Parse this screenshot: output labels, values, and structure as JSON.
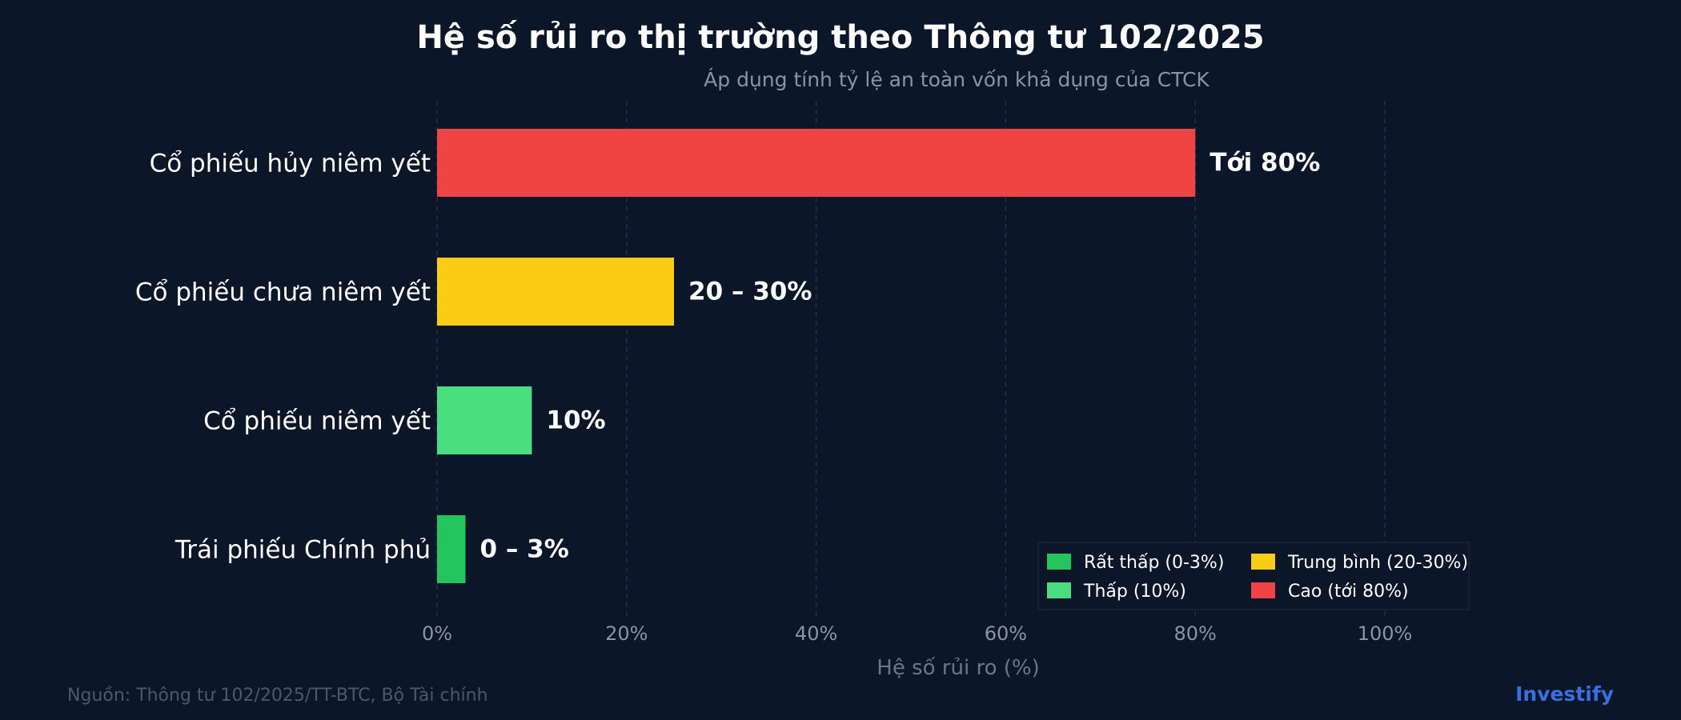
{
  "chart_data": {
    "type": "bar",
    "orientation": "horizontal",
    "title": "Hệ số rủi ro thị trường theo Thông tư 102/2025",
    "subtitle": "Áp dụng tính tỷ lệ an toàn vốn khả dụng của CTCK",
    "xlabel": "Hệ số rủi ro (%)",
    "xlim": [
      0,
      100
    ],
    "x_ticks": [
      "0%",
      "20%",
      "40%",
      "60%",
      "80%",
      "100%"
    ],
    "grid": true,
    "legend_position": "bottom-right",
    "categories": [
      "Cổ phiếu hủy niêm yết",
      "Cổ phiếu chưa niêm yết",
      "Cổ phiếu niêm yết",
      "Trái phiếu Chính phủ"
    ],
    "values": [
      80,
      25,
      10,
      3
    ],
    "labels": [
      "Tới 80%",
      "20 – 30%",
      "10%",
      "0 – 3%"
    ],
    "colors": [
      "#ef4444",
      "#facc15",
      "#4ade80",
      "#22c55e"
    ],
    "legend": [
      {
        "label": "Rất thấp (0-3%)",
        "color": "#22c55e"
      },
      {
        "label": "Thấp (10%)",
        "color": "#4ade80"
      },
      {
        "label": "Trung bình (20-30%)",
        "color": "#facc15"
      },
      {
        "label": "Cao (tới 80%)",
        "color": "#ef4444"
      }
    ]
  },
  "footer": {
    "source": "Nguồn: Thông tư 102/2025/TT-BTC, Bộ Tài chính",
    "brand": "Investify"
  }
}
